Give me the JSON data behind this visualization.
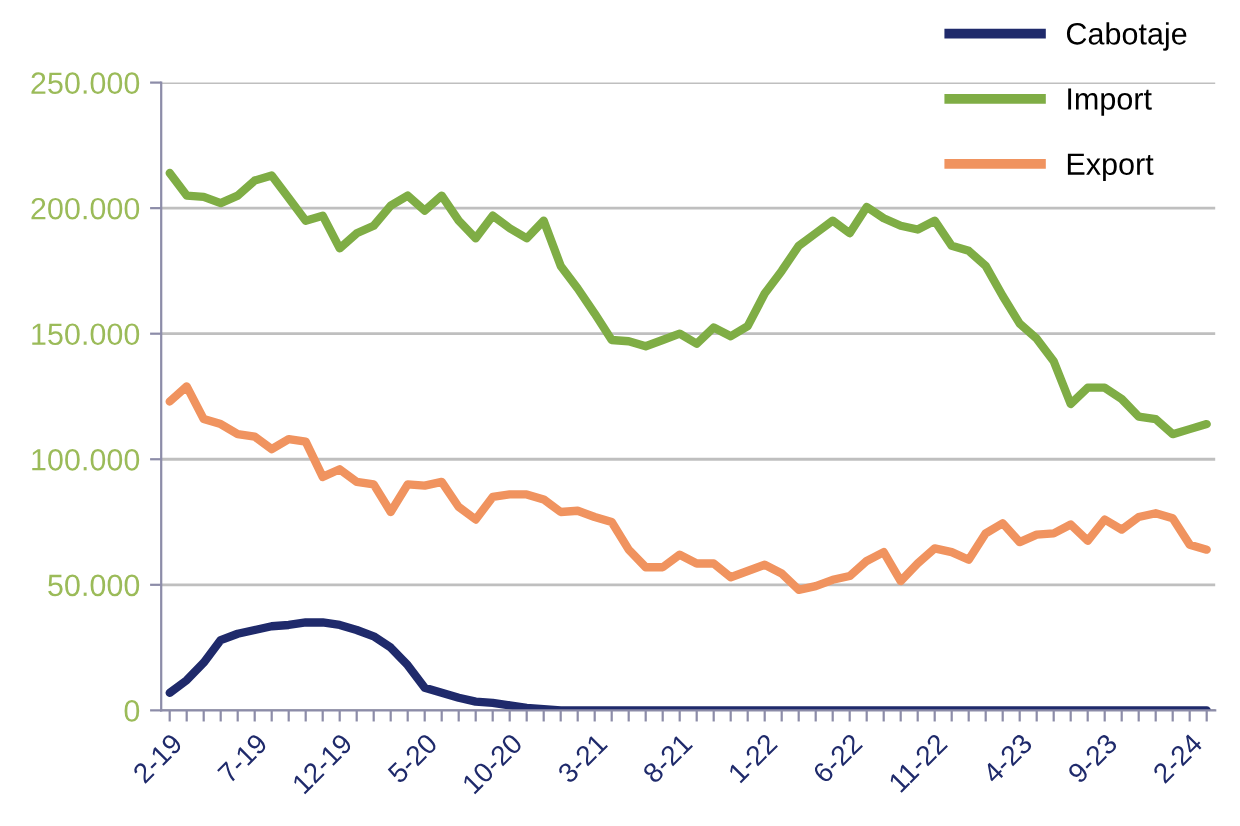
{
  "chart_data": {
    "type": "line",
    "categories": [
      "2-19",
      null,
      null,
      null,
      null,
      "7-19",
      null,
      null,
      null,
      null,
      "12-19",
      null,
      null,
      null,
      null,
      "5-20",
      null,
      null,
      null,
      null,
      "10-20",
      null,
      null,
      null,
      null,
      "3-21",
      null,
      null,
      null,
      null,
      "8-21",
      null,
      null,
      null,
      null,
      "1-22",
      null,
      null,
      null,
      null,
      "6-22",
      null,
      null,
      null,
      null,
      "11-22",
      null,
      null,
      null,
      null,
      "4-23",
      null,
      null,
      null,
      null,
      "9-23",
      null,
      null,
      null,
      null,
      "2-24",
      null
    ],
    "series": [
      {
        "name": "Cabotaje",
        "color": "#1f2a6b",
        "values": [
          7000,
          12000,
          19000,
          28000,
          30500,
          32000,
          33500,
          34000,
          35000,
          35000,
          34000,
          32000,
          29500,
          25000,
          18000,
          9000,
          7000,
          5000,
          3500,
          3000,
          2000,
          1000,
          500,
          0,
          0,
          0,
          0,
          0,
          0,
          0,
          0,
          0,
          0,
          0,
          0,
          0,
          0,
          0,
          0,
          0,
          0,
          0,
          0,
          0,
          0,
          0,
          0,
          0,
          0,
          0,
          0,
          0,
          0,
          0,
          0,
          0,
          0,
          0,
          0,
          0,
          0,
          0
        ]
      },
      {
        "name": "Import",
        "color": "#7fad45",
        "values": [
          214000,
          205000,
          204500,
          202000,
          205000,
          211000,
          213000,
          204000,
          195000,
          197000,
          184000,
          190000,
          193000,
          201000,
          205000,
          199000,
          205000,
          195000,
          188000,
          197000,
          192000,
          188000,
          195000,
          177000,
          168000,
          158000,
          147500,
          147000,
          145000,
          147500,
          150000,
          146000,
          152500,
          149000,
          153000,
          166000,
          175000,
          185000,
          190000,
          195000,
          190000,
          200500,
          196000,
          193000,
          191500,
          195000,
          185000,
          183000,
          177000,
          165000,
          154000,
          148000,
          139000,
          122000,
          128500,
          128500,
          124000,
          117000,
          116000,
          110000,
          112000,
          114000
        ]
      },
      {
        "name": "Export",
        "color": "#f0935f",
        "values": [
          123000,
          129000,
          116000,
          114000,
          110000,
          109000,
          104000,
          108000,
          107000,
          93000,
          96000,
          91000,
          90000,
          79000,
          90000,
          89500,
          91000,
          81000,
          76000,
          85000,
          86000,
          86000,
          84000,
          79000,
          79500,
          77000,
          75000,
          64000,
          57000,
          57000,
          62000,
          58500,
          58500,
          53000,
          55500,
          58000,
          54500,
          48000,
          49500,
          52000,
          53500,
          59500,
          63000,
          51500,
          58500,
          64500,
          63000,
          60000,
          70500,
          74500,
          67000,
          70000,
          70500,
          74000,
          67500,
          76000,
          72000,
          77000,
          78500,
          76500,
          66000,
          64000
        ]
      }
    ],
    "ylim": [
      0,
      250000
    ],
    "yticks": [
      {
        "value": 0,
        "label": "0"
      },
      {
        "value": 50000,
        "label": "50.000"
      },
      {
        "value": 100000,
        "label": "100.000"
      },
      {
        "value": 150000,
        "label": "150.000"
      },
      {
        "value": 200000,
        "label": "200.000"
      },
      {
        "value": 250000,
        "label": "250.000"
      }
    ],
    "grid": "y",
    "legend": "top right",
    "marker": "none",
    "line_style": "solid"
  }
}
